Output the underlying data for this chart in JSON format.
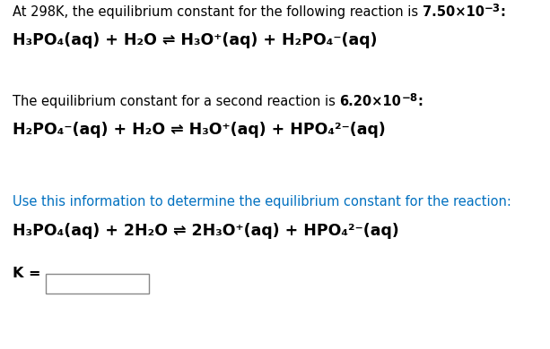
{
  "bg_color": "#ffffff",
  "text_color": "#000000",
  "blue_color": "#0070c0",
  "figsize": [
    6.13,
    3.9
  ],
  "dpi": 100,
  "line1_normal": "At 298K, the equilibrium constant for the following reaction is ",
  "line1_bold": "7.50×10",
  "line1_exp": "−3",
  "line1_colon": ":",
  "eq1": "H₃PO₄(aq) + H₂O ⇌ H₃O⁺(aq) + H₂PO₄⁻(aq)",
  "line2_normal": "The equilibrium constant for a second reaction is ",
  "line2_bold": "6.20×10",
  "line2_exp": "−8",
  "line2_colon": ":",
  "eq2": "H₂PO₄⁻(aq) + H₂O ⇌ H₃O⁺(aq) + HPO₄²⁻(aq)",
  "line3": "Use this information to determine the equilibrium constant for the reaction:",
  "eq3": "H₃PO₄(aq) + 2H₂O ⇌ 2H₃O⁺(aq) + HPO₄²⁻(aq)",
  "klabel": "K = "
}
